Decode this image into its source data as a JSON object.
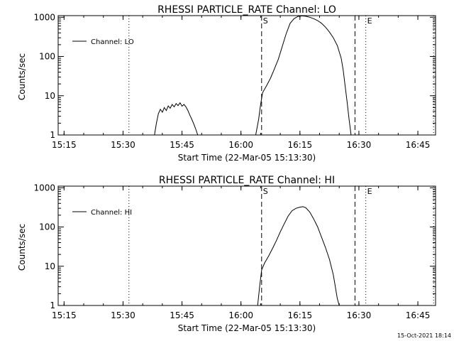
{
  "footer": {
    "timestamp": "15-Oct-2021 18:14"
  },
  "chart_data": [
    {
      "type": "line",
      "title": "RHESSI PARTICLE_RATE Channel: LO",
      "xlabel": "Start Time (22-Mar-05 15:13:30)",
      "ylabel": "Counts/sec",
      "y_scale": "log",
      "xlim": [
        "15:13:30",
        "16:49:30"
      ],
      "ylim": [
        1,
        1100
      ],
      "x_ticks": [
        "15:15",
        "15:30",
        "15:45",
        "16:00",
        "16:15",
        "16:30",
        "16:45"
      ],
      "y_ticks": [
        "1",
        "10",
        "100",
        "1000"
      ],
      "legend": {
        "position": "top-left",
        "entries": [
          "Channel: LO"
        ]
      },
      "markers": [
        {
          "label": "S",
          "time": "16:05:15",
          "style": "dashed"
        },
        {
          "label": "",
          "time": "16:29:00",
          "style": "dashed"
        },
        {
          "label": "E",
          "time": "16:31:45",
          "style": "dotted"
        },
        {
          "label": "",
          "time": "15:31:30",
          "style": "dotted"
        },
        {
          "label": "",
          "time": "16:49:00",
          "style": "dotted"
        }
      ],
      "series": [
        {
          "name": "Channel: LO",
          "segments": [
            [
              [
                "15:38:00",
                1
              ],
              [
                "15:38:30",
                2.0
              ],
              [
                "15:39:00",
                3.5
              ],
              [
                "15:39:30",
                4.5
              ],
              [
                "15:40:00",
                3.8
              ],
              [
                "15:40:30",
                5.0
              ],
              [
                "15:41:00",
                4.2
              ],
              [
                "15:41:30",
                5.5
              ],
              [
                "15:42:00",
                4.8
              ],
              [
                "15:42:30",
                6.0
              ],
              [
                "15:43:00",
                5.2
              ],
              [
                "15:43:30",
                6.3
              ],
              [
                "15:44:00",
                5.6
              ],
              [
                "15:44:30",
                6.6
              ],
              [
                "15:45:00",
                5.4
              ],
              [
                "15:45:30",
                6.0
              ],
              [
                "15:46:00",
                5.2
              ],
              [
                "15:46:30",
                4.2
              ],
              [
                "15:47:00",
                3.2
              ],
              [
                "15:47:30",
                2.5
              ],
              [
                "15:48:00",
                1.9
              ],
              [
                "15:48:30",
                1.4
              ],
              [
                "15:49:00",
                1
              ]
            ],
            [
              [
                "16:03:45",
                1
              ],
              [
                "16:04:30",
                2.5
              ],
              [
                "16:05:00",
                6
              ],
              [
                "16:05:30",
                12
              ],
              [
                "16:06:30",
                18
              ],
              [
                "16:07:30",
                28
              ],
              [
                "16:08:30",
                48
              ],
              [
                "16:09:30",
                85
              ],
              [
                "16:10:30",
                180
              ],
              [
                "16:11:30",
                380
              ],
              [
                "16:12:30",
                700
              ],
              [
                "16:13:30",
                920
              ],
              [
                "16:14:30",
                1050
              ],
              [
                "16:15:30",
                1080
              ],
              [
                "16:16:30",
                1060
              ],
              [
                "16:17:30",
                1000
              ],
              [
                "16:18:30",
                920
              ],
              [
                "16:19:30",
                820
              ],
              [
                "16:20:30",
                700
              ],
              [
                "16:21:30",
                560
              ],
              [
                "16:22:30",
                420
              ],
              [
                "16:23:30",
                300
              ],
              [
                "16:24:30",
                190
              ],
              [
                "16:25:30",
                90
              ],
              [
                "16:26:00",
                45
              ],
              [
                "16:26:30",
                18
              ],
              [
                "16:27:00",
                7
              ],
              [
                "16:27:30",
                2.5
              ],
              [
                "16:28:00",
                1
              ]
            ]
          ]
        }
      ]
    },
    {
      "type": "line",
      "title": "RHESSI PARTICLE_RATE Channel: HI",
      "xlabel": "Start Time (22-Mar-05 15:13:30)",
      "ylabel": "Counts/sec",
      "y_scale": "log",
      "xlim": [
        "15:13:30",
        "16:49:30"
      ],
      "ylim": [
        1,
        1100
      ],
      "x_ticks": [
        "15:15",
        "15:30",
        "15:45",
        "16:00",
        "16:15",
        "16:30",
        "16:45"
      ],
      "y_ticks": [
        "1",
        "10",
        "100",
        "1000"
      ],
      "legend": {
        "position": "top-left",
        "entries": [
          "Channel: HI"
        ]
      },
      "markers": [
        {
          "label": "S",
          "time": "16:05:15",
          "style": "dashed"
        },
        {
          "label": "",
          "time": "16:29:00",
          "style": "dashed"
        },
        {
          "label": "E",
          "time": "16:31:45",
          "style": "dotted"
        },
        {
          "label": "",
          "time": "15:31:30",
          "style": "dotted"
        },
        {
          "label": "",
          "time": "16:49:00",
          "style": "dotted"
        }
      ],
      "series": [
        {
          "name": "Channel: HI",
          "segments": [
            [
              [
                "16:04:15",
                1
              ],
              [
                "16:04:45",
                3
              ],
              [
                "16:05:15",
                8
              ],
              [
                "16:06:00",
                12
              ],
              [
                "16:07:00",
                18
              ],
              [
                "16:08:00",
                28
              ],
              [
                "16:09:00",
                45
              ],
              [
                "16:10:00",
                75
              ],
              [
                "16:11:00",
                120
              ],
              [
                "16:12:00",
                190
              ],
              [
                "16:13:00",
                260
              ],
              [
                "16:14:00",
                300
              ],
              [
                "16:15:00",
                320
              ],
              [
                "16:15:45",
                330
              ],
              [
                "16:16:30",
                310
              ],
              [
                "16:17:30",
                240
              ],
              [
                "16:18:30",
                160
              ],
              [
                "16:19:30",
                100
              ],
              [
                "16:20:30",
                55
              ],
              [
                "16:21:30",
                30
              ],
              [
                "16:22:30",
                15
              ],
              [
                "16:23:30",
                6
              ],
              [
                "16:24:00",
                3
              ],
              [
                "16:24:30",
                1.5
              ],
              [
                "16:25:00",
                1
              ]
            ]
          ]
        }
      ]
    }
  ]
}
